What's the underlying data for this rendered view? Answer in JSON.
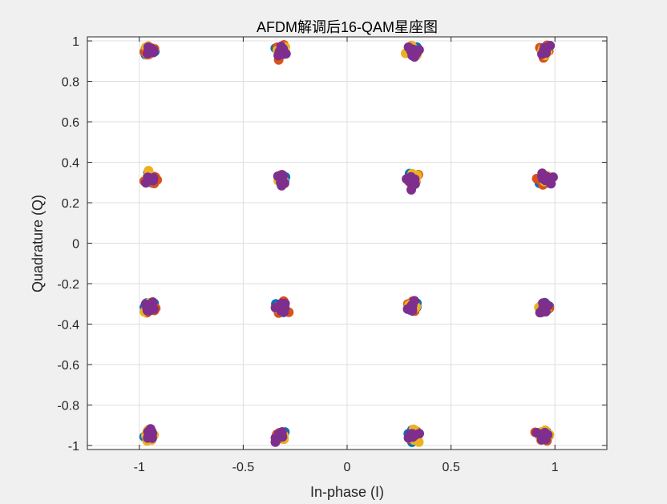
{
  "chart_data": {
    "type": "scatter",
    "title": "AFDM解调后16-QAM星座图",
    "xlabel": "In-phase (I)",
    "ylabel": "Quadrature (Q)",
    "xlim": [
      -1.25,
      1.25
    ],
    "ylim": [
      -1.02,
      1.02
    ],
    "xticks": [
      "-1",
      "-0.5",
      "0",
      "0.5",
      "1"
    ],
    "yticks": [
      "-1",
      "-0.8",
      "-0.6",
      "-0.4",
      "-0.2",
      "0",
      "0.2",
      "0.4",
      "0.6",
      "0.8",
      "1"
    ],
    "grid": true,
    "legend": "none",
    "constellation_points_i": [
      -0.95,
      -0.316,
      0.316,
      0.95
    ],
    "constellation_points_q": [
      -0.95,
      -0.316,
      0.316,
      0.95
    ],
    "series_colors": [
      "#0072bd",
      "#d95319",
      "#edb120",
      "#7e2f8e"
    ]
  }
}
